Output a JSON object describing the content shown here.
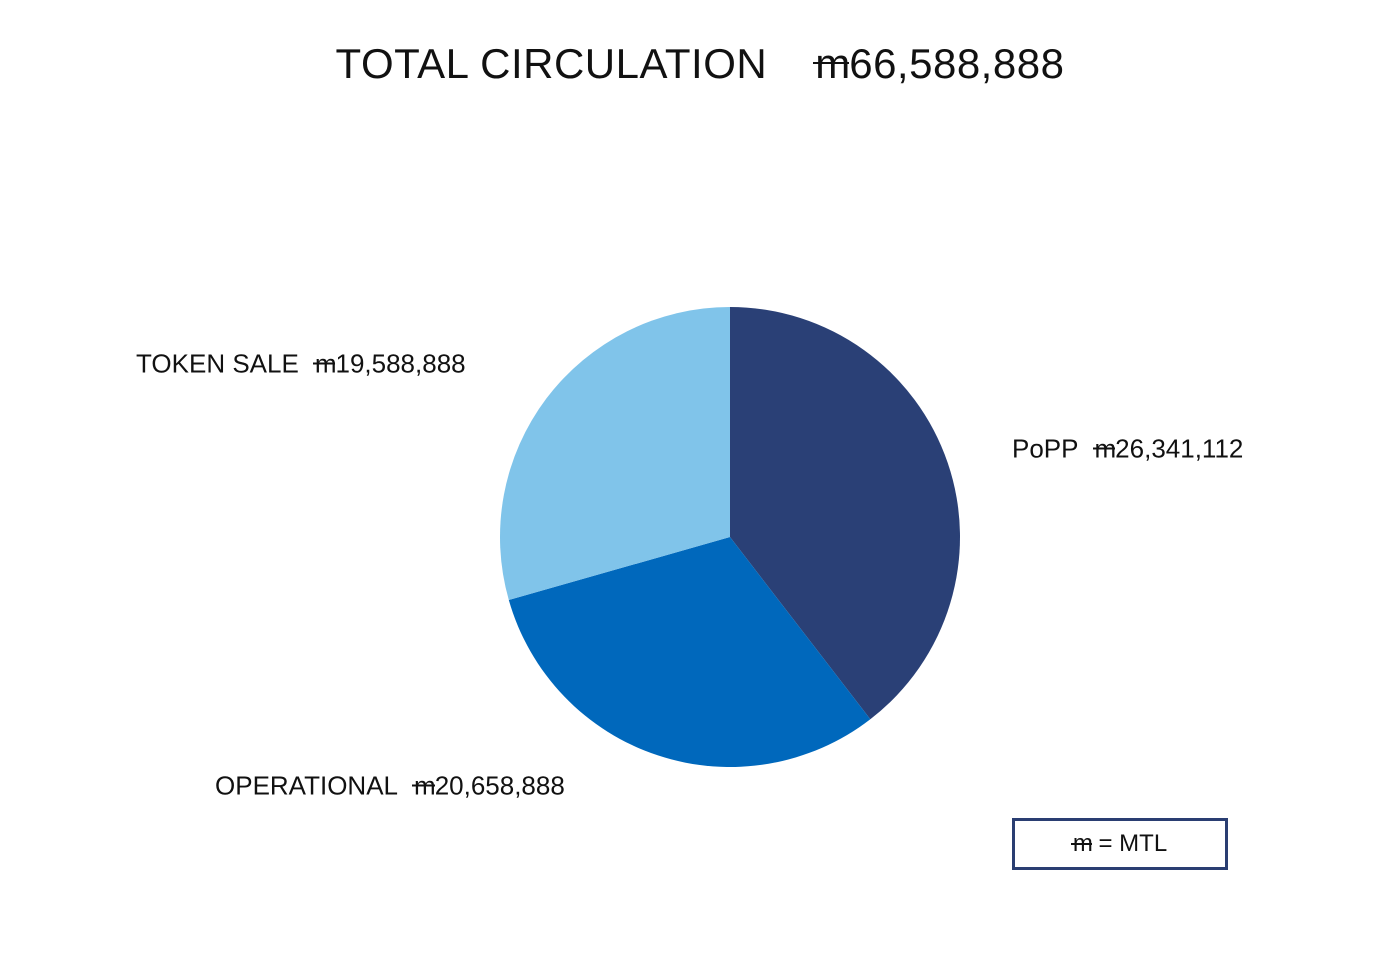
{
  "title": {
    "label": "TOTAL CIRCULATION",
    "currency_symbol": "m",
    "total": "66,588,888"
  },
  "legend": {
    "symbol": "m",
    "text": "= MTL"
  },
  "chart_data": {
    "type": "pie",
    "title": "TOTAL CIRCULATION m66,588,888",
    "unit": "MTL",
    "start_angle_deg": 0,
    "direction": "clockwise",
    "slices": [
      {
        "label": "PoPP",
        "value": 26341112,
        "value_text": "26,341,112",
        "color": "#2a4076"
      },
      {
        "label": "OPERATIONAL",
        "value": 20658888,
        "value_text": "20,658,888",
        "color": "#0068bc"
      },
      {
        "label": "TOKEN SALE",
        "value": 19588888,
        "value_text": "19,588,888",
        "color": "#80c4ea"
      }
    ]
  }
}
